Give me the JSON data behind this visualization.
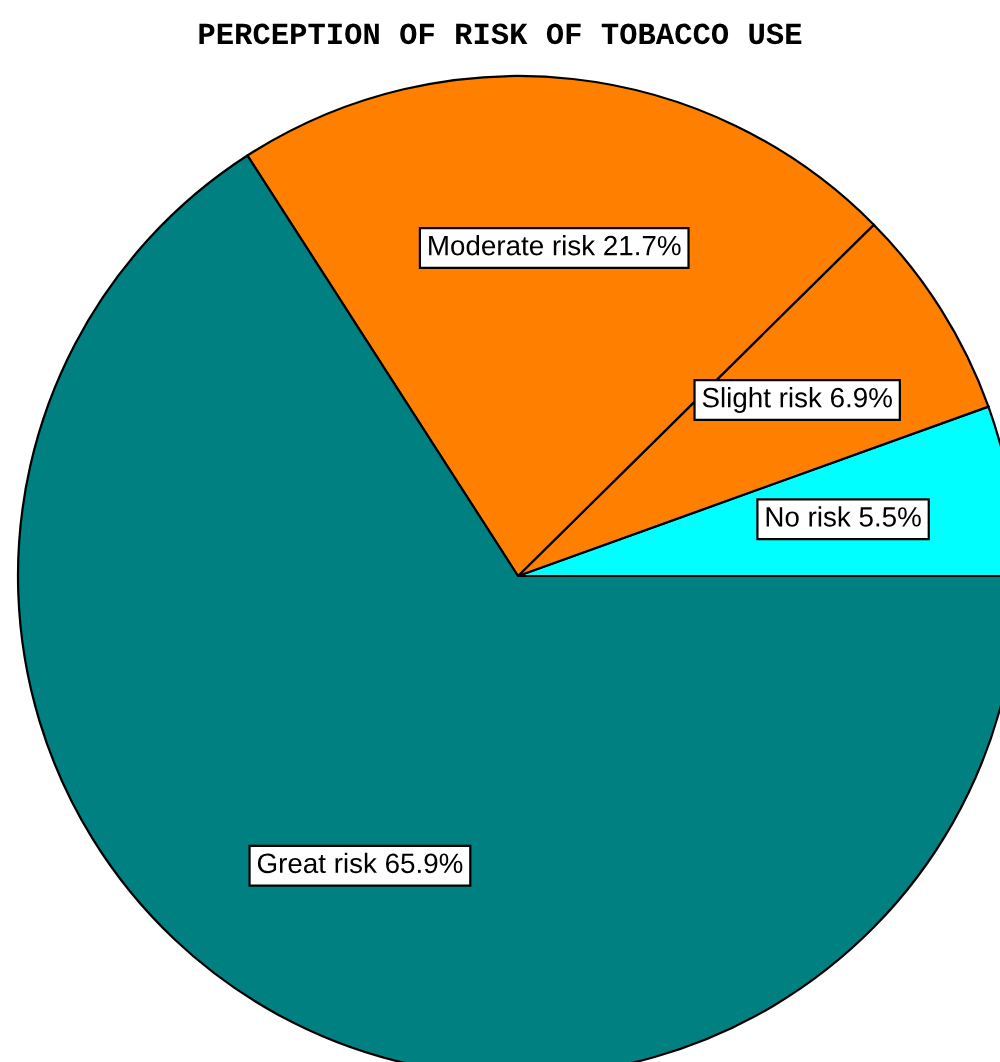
{
  "chart_data": {
    "type": "pie",
    "title": "PERCEPTION OF RISK OF TOBACCO USE",
    "categories": [
      "No risk",
      "Slight risk",
      "Moderate risk",
      "Great risk"
    ],
    "values": [
      5.5,
      6.9,
      21.7,
      65.9
    ],
    "value_labels": [
      "5.5%",
      "6.9%",
      "21.7%",
      "65.9%"
    ],
    "colors": [
      "#00ffff",
      "#ff8000",
      "#ff8000",
      "#008080"
    ],
    "legend": false
  }
}
